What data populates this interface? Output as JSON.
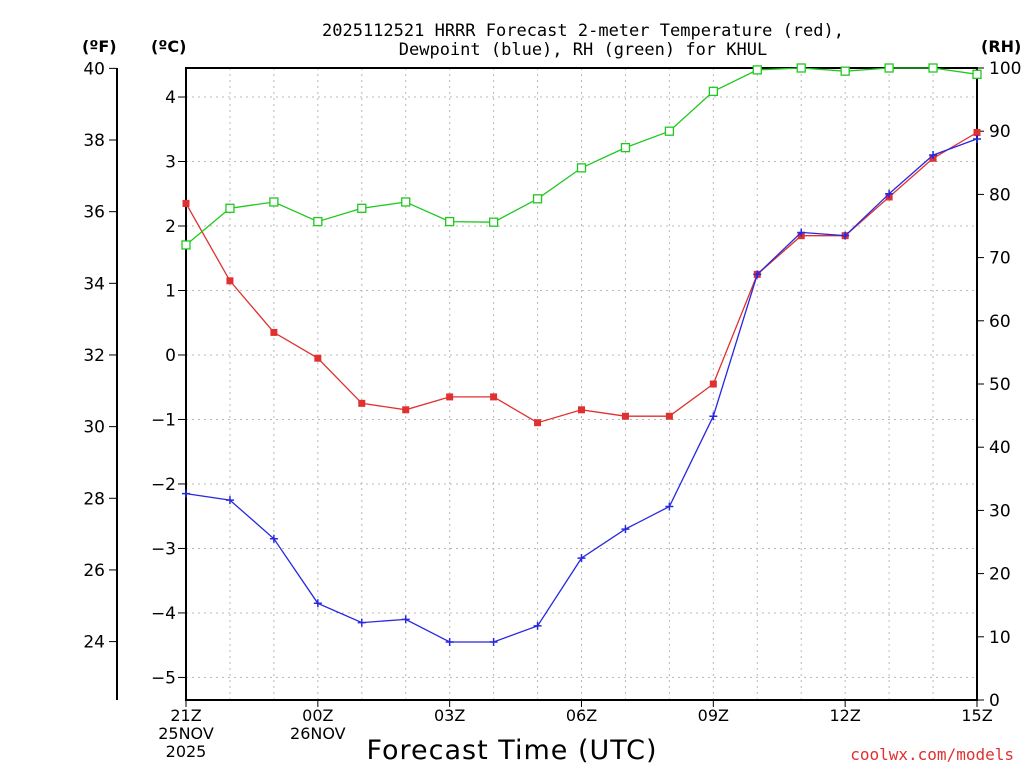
{
  "chart_data": {
    "type": "line",
    "title_line1": "2025112521 HRRR Forecast 2-meter Temperature (red),",
    "title_line2": "Dewpoint (blue), RH (green) for KHUL",
    "unit_f": "(ºF)",
    "unit_c": "(ºC)",
    "unit_rh": "(RH)",
    "xlabel": "Forecast Time (UTC)",
    "credit": "coolwx.com/models",
    "x": [
      0,
      1,
      2,
      3,
      4,
      5,
      6,
      7,
      8,
      9,
      10,
      11,
      12,
      13,
      14,
      15,
      16,
      17,
      18
    ],
    "xlim": [
      0,
      18
    ],
    "ylim_c": [
      -5.35,
      4.45
    ],
    "ylim_f": [
      22.37,
      40.01
    ],
    "ylim_rh": [
      0,
      100
    ],
    "x_ticks": [
      {
        "x": 0,
        "lines": [
          "21Z",
          "25NOV",
          "2025"
        ]
      },
      {
        "x": 3,
        "lines": [
          "00Z",
          "26NOV"
        ]
      },
      {
        "x": 6,
        "lines": [
          "03Z"
        ]
      },
      {
        "x": 9,
        "lines": [
          "06Z"
        ]
      },
      {
        "x": 12,
        "lines": [
          "09Z"
        ]
      },
      {
        "x": 15,
        "lines": [
          "12Z"
        ]
      },
      {
        "x": 18,
        "lines": [
          "15Z"
        ]
      }
    ],
    "c_ticks": [
      -5,
      -4,
      -3,
      -2,
      -1,
      0,
      1,
      2,
      3,
      4
    ],
    "f_ticks": [
      24,
      26,
      28,
      30,
      32,
      34,
      36,
      38,
      40
    ],
    "rh_ticks": [
      0,
      10,
      20,
      30,
      40,
      50,
      60,
      70,
      80,
      90,
      100
    ],
    "series": [
      {
        "name": "Temperature",
        "axis": "c",
        "color": "#e03030",
        "marker": "square-filled",
        "values": [
          2.35,
          1.15,
          0.35,
          -0.05,
          -0.75,
          -0.85,
          -0.65,
          -0.65,
          -1.05,
          -0.85,
          -0.95,
          -0.95,
          -0.45,
          1.25,
          1.85,
          1.85,
          2.45,
          3.05,
          3.45
        ]
      },
      {
        "name": "Dewpoint",
        "axis": "c",
        "color": "#2828e0",
        "marker": "plus",
        "values": [
          -2.15,
          -2.25,
          -2.85,
          -3.85,
          -4.15,
          -4.1,
          -4.45,
          -4.45,
          -4.2,
          -3.15,
          -2.7,
          -2.35,
          -0.95,
          1.25,
          1.9,
          1.85,
          2.5,
          3.1,
          3.35
        ]
      },
      {
        "name": "RH",
        "axis": "rh",
        "color": "#20c820",
        "marker": "square-open",
        "values": [
          72,
          77.8,
          78.8,
          75.7,
          77.8,
          78.8,
          75.7,
          75.6,
          79.3,
          84.2,
          87.4,
          90,
          96.3,
          99.7,
          100,
          99.5,
          100,
          100,
          99
        ]
      }
    ]
  }
}
